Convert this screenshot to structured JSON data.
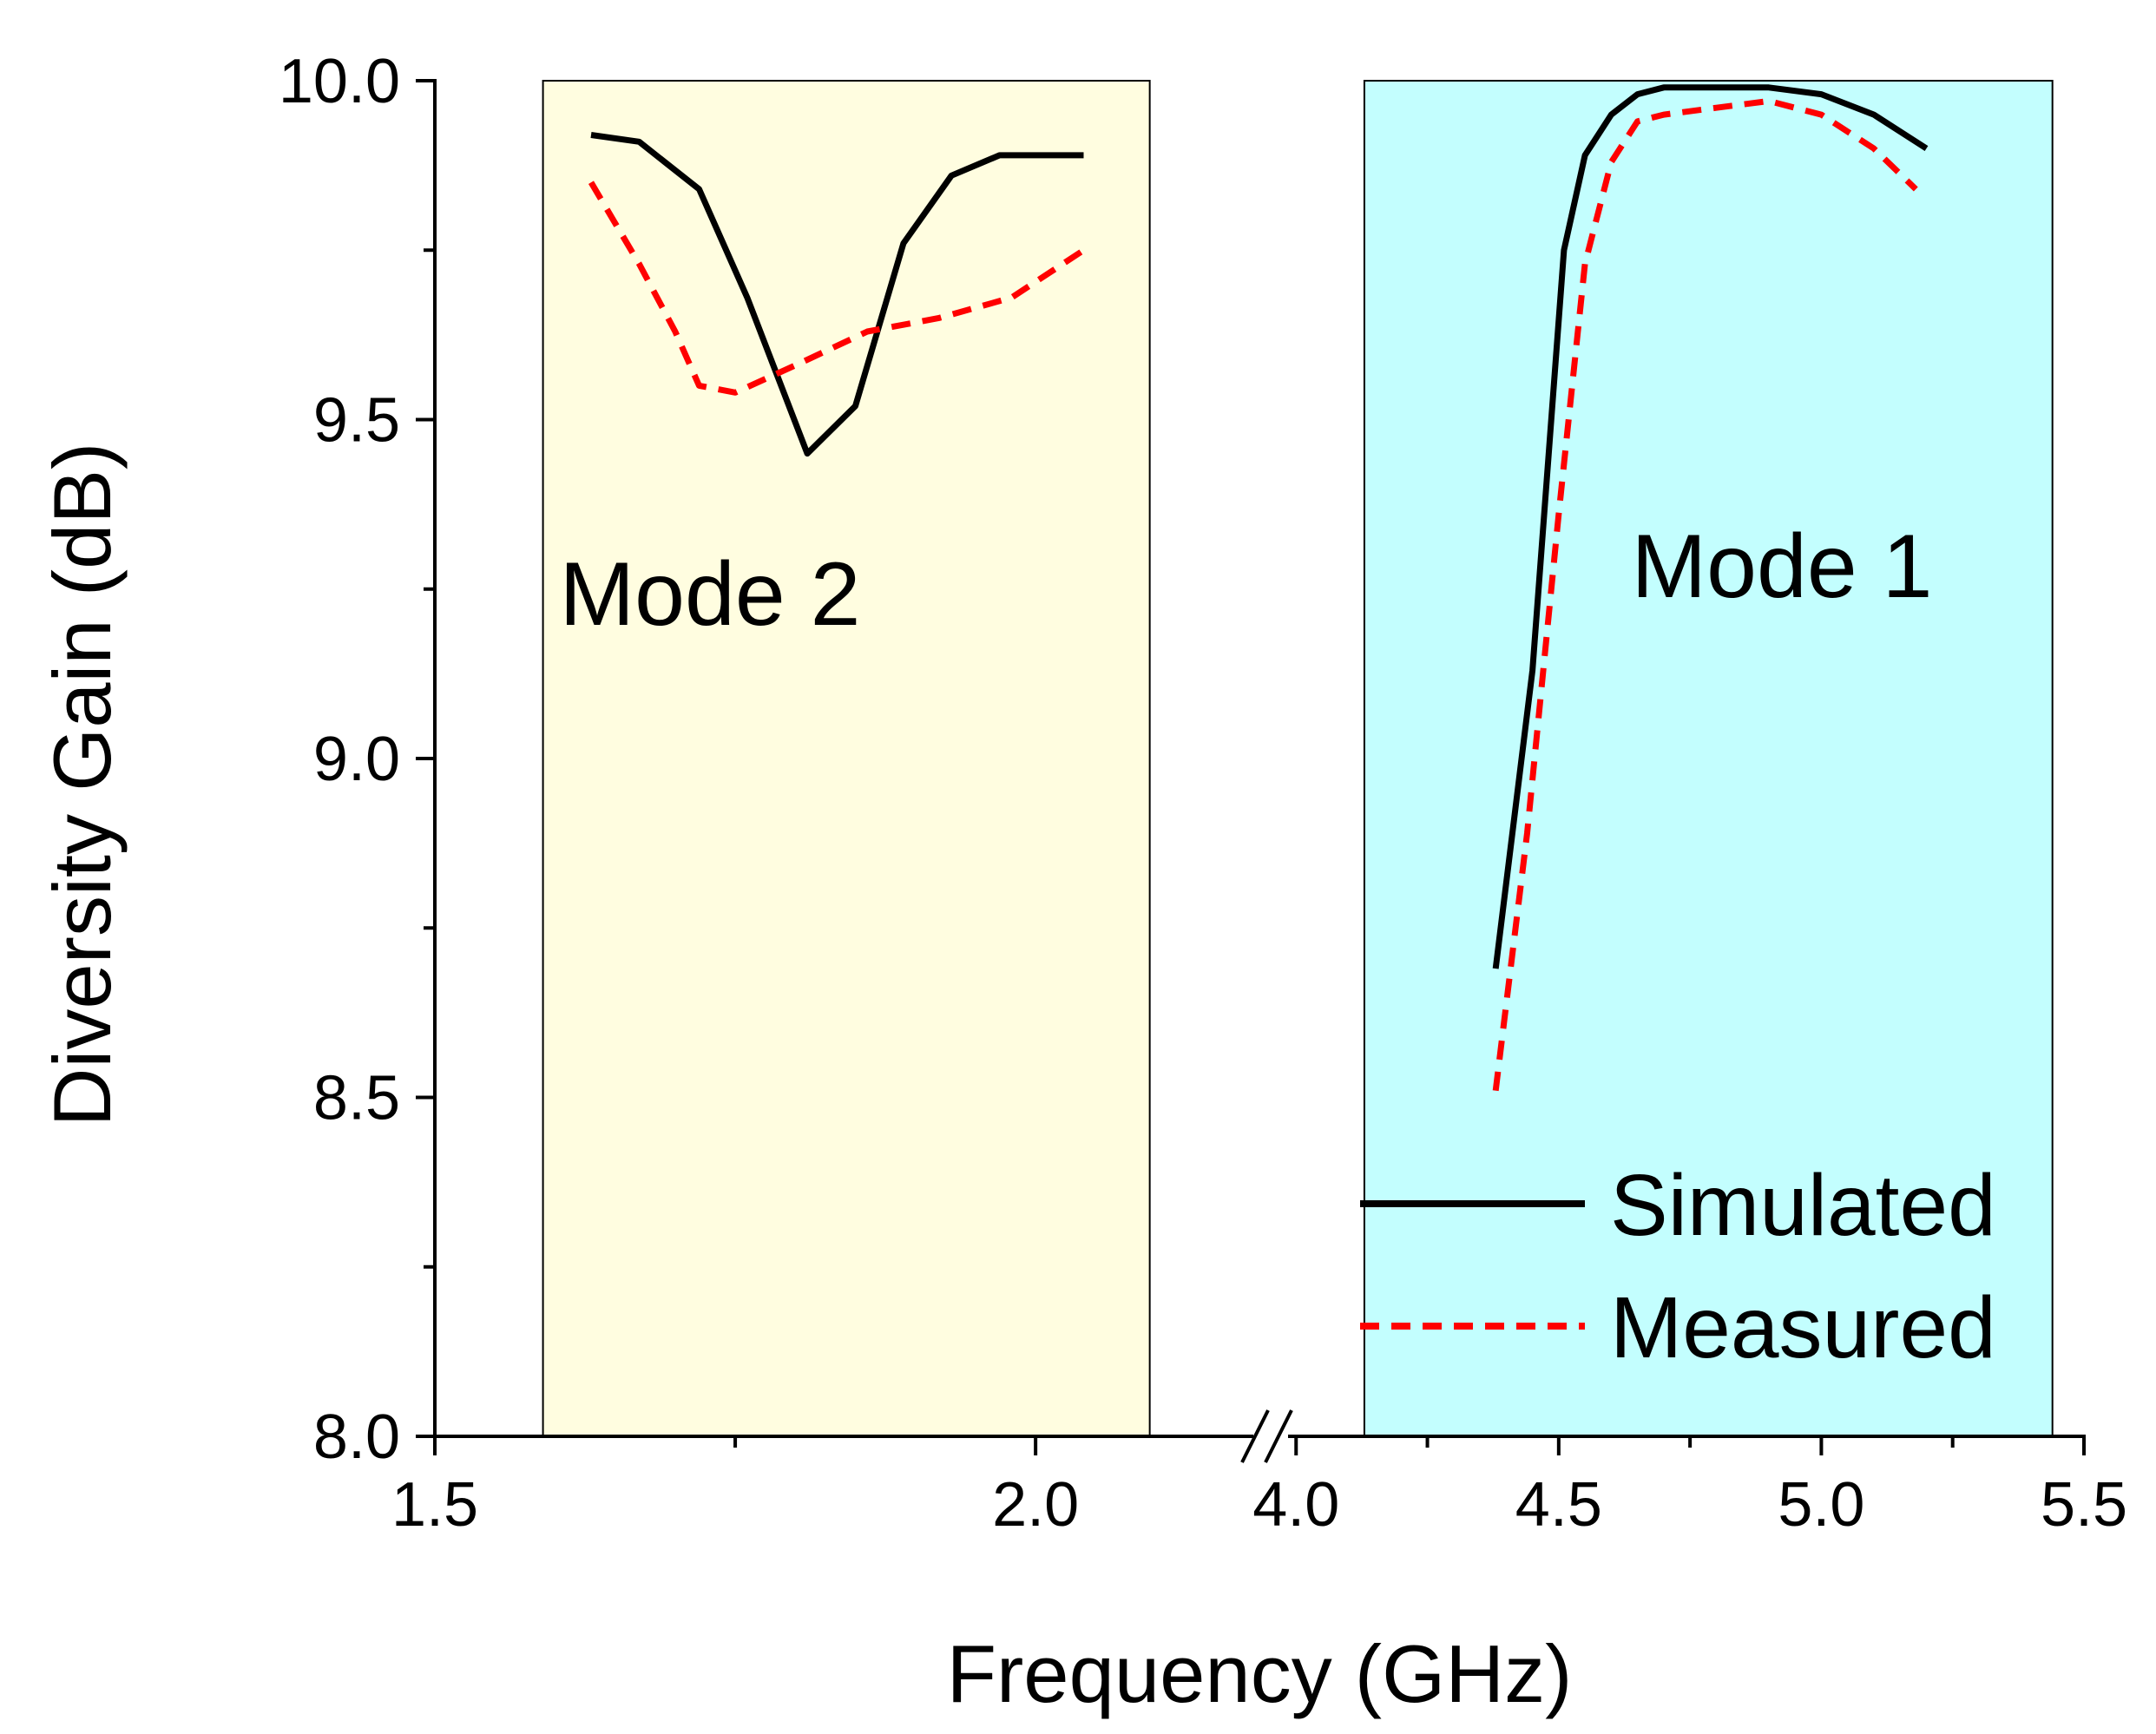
{
  "chart_data": {
    "type": "line",
    "title": "",
    "xlabel": "Frequency (GHz)",
    "ylabel": "Diversity Gain (dB)",
    "ylim": [
      8.0,
      10.0
    ],
    "y_ticks": [
      8.0,
      8.5,
      9.0,
      9.5,
      10.0
    ],
    "y_tick_labels": [
      "8.0",
      "8.5",
      "9.0",
      "9.5",
      "10.0"
    ],
    "x_axis_break": true,
    "x_segments": [
      {
        "xlim": [
          1.5,
          2.2
        ],
        "ticks": [
          1.5,
          2.0
        ],
        "tick_labels": [
          "1.5",
          "2.0"
        ],
        "minor_ticks": [
          1.75
        ]
      },
      {
        "xlim": [
          3.95,
          5.5
        ],
        "ticks": [
          4.0,
          4.5,
          5.0,
          5.5
        ],
        "tick_labels": [
          "4.0",
          "4.5",
          "5.0",
          "5.5"
        ],
        "minor_ticks": [
          4.25,
          4.75,
          5.25
        ]
      }
    ],
    "regions": [
      {
        "label": "Mode 2",
        "x_range": [
          1.59,
          2.095
        ],
        "color": "#fffde0"
      },
      {
        "label": "Mode 1",
        "x_range": [
          4.13,
          5.44
        ],
        "color": "#c3fefe"
      }
    ],
    "legend": {
      "position": "bottom-right",
      "entries": [
        "Simulated",
        "Measured"
      ]
    },
    "series": [
      {
        "name": "Simulated",
        "color": "#000000",
        "style": "solid",
        "points": [
          [
            1.63,
            9.92
          ],
          [
            1.67,
            9.91
          ],
          [
            1.72,
            9.84
          ],
          [
            1.76,
            9.68
          ],
          [
            1.81,
            9.45
          ],
          [
            1.85,
            9.52
          ],
          [
            1.89,
            9.76
          ],
          [
            1.93,
            9.86
          ],
          [
            1.97,
            9.89
          ],
          [
            2.04,
            9.89
          ],
          [
            4.38,
            8.69
          ],
          [
            4.45,
            9.13
          ],
          [
            4.51,
            9.75
          ],
          [
            4.55,
            9.89
          ],
          [
            4.6,
            9.95
          ],
          [
            4.65,
            9.98
          ],
          [
            4.7,
            9.99
          ],
          [
            4.8,
            9.99
          ],
          [
            4.9,
            9.99
          ],
          [
            5.0,
            9.98
          ],
          [
            5.1,
            9.95
          ],
          [
            5.2,
            9.9
          ]
        ]
      },
      {
        "name": "Measured",
        "color": "#ff0000",
        "style": "dashed",
        "points": [
          [
            1.63,
            9.85
          ],
          [
            1.67,
            9.73
          ],
          [
            1.7,
            9.63
          ],
          [
            1.72,
            9.55
          ],
          [
            1.75,
            9.54
          ],
          [
            1.8,
            9.58
          ],
          [
            1.86,
            9.63
          ],
          [
            1.92,
            9.65
          ],
          [
            1.98,
            9.68
          ],
          [
            2.04,
            9.75
          ],
          [
            4.38,
            8.51
          ],
          [
            4.44,
            8.89
          ],
          [
            4.5,
            9.36
          ],
          [
            4.55,
            9.73
          ],
          [
            4.6,
            9.88
          ],
          [
            4.65,
            9.94
          ],
          [
            4.7,
            9.95
          ],
          [
            4.8,
            9.96
          ],
          [
            4.9,
            9.97
          ],
          [
            5.0,
            9.95
          ],
          [
            5.1,
            9.9
          ],
          [
            5.18,
            9.84
          ]
        ]
      }
    ]
  }
}
